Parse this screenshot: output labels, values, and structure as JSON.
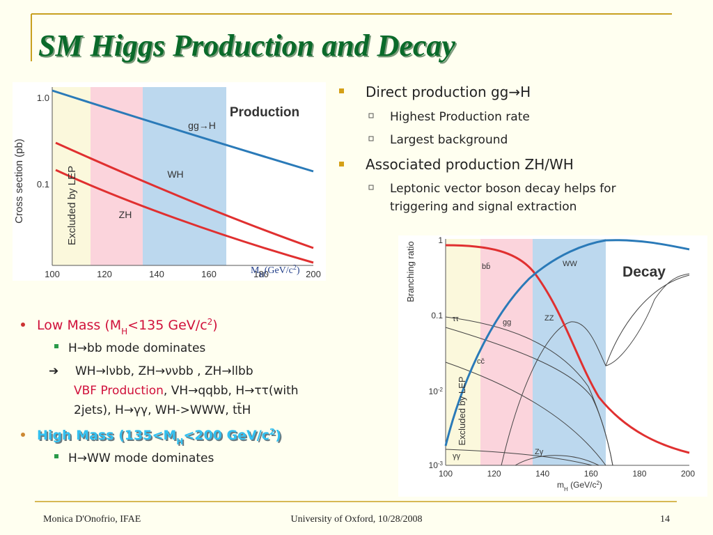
{
  "title": "SM Higgs Production and Decay",
  "right_list": {
    "items": [
      {
        "text": "Direct production gg→H",
        "subitems": [
          [
            "Highest Production rate"
          ],
          [
            "Largest background"
          ]
        ]
      },
      {
        "text": "Associated production ZH/WH",
        "subitems": [
          [
            "Leptonic vector boson decay helps for",
            "triggering and signal extraction"
          ]
        ]
      }
    ]
  },
  "left_list": {
    "low_mass": [
      "Low Mass (M",
      "H",
      "<135 GeV/c",
      "2",
      ")"
    ],
    "low_items": [
      "H→bb mode dominates"
    ],
    "channels": [
      [
        "WH→lνbb, ZH→ννbb , ZH→llbb"
      ],
      [
        "VBF Production",
        ", VH→qqbb, H→ττ(with"
      ],
      [
        "2jets), H→γγ, WH->WWW, tt̄H"
      ]
    ],
    "high_mass": [
      "High Mass (135<M",
      "H",
      "<200 GeV/c",
      "2",
      ")"
    ],
    "high_items": [
      "H→WW mode dominates"
    ]
  },
  "production_plot": {
    "title": "Production",
    "y_label": "Cross section (pb)",
    "band_label": "Excluded by LEP",
    "yticks": [
      "1.0",
      "0.1"
    ],
    "xticks": [
      "100",
      "120",
      "140",
      "160",
      "180",
      "200"
    ],
    "curve_labels": [
      "gg→H",
      "WH",
      "ZH"
    ],
    "x_label": [
      "M",
      "H",
      "(GeV/c",
      "2",
      ")"
    ]
  },
  "decay_plot": {
    "title": "Decay",
    "y_label": "Branching ratio",
    "band_label": "Excluded by LEP",
    "yticks": [
      [
        "1"
      ],
      [
        "0.1"
      ],
      [
        "10",
        "-2"
      ],
      [
        "10",
        "-3"
      ]
    ],
    "xticks": [
      "100",
      "120",
      "140",
      "160",
      "180",
      "200"
    ],
    "x_label": [
      "m",
      "H",
      " (GeV/c",
      "2",
      ")"
    ],
    "curve_labels": [
      "bb̄",
      "WW",
      "ττ",
      "gg",
      "ZZ",
      "cc̄",
      "γγ",
      "Zγ"
    ]
  },
  "footer": {
    "author": "Monica D'Onofrio, IFAE",
    "venue": "University of Oxford, 10/28/2008",
    "page": "14"
  }
}
